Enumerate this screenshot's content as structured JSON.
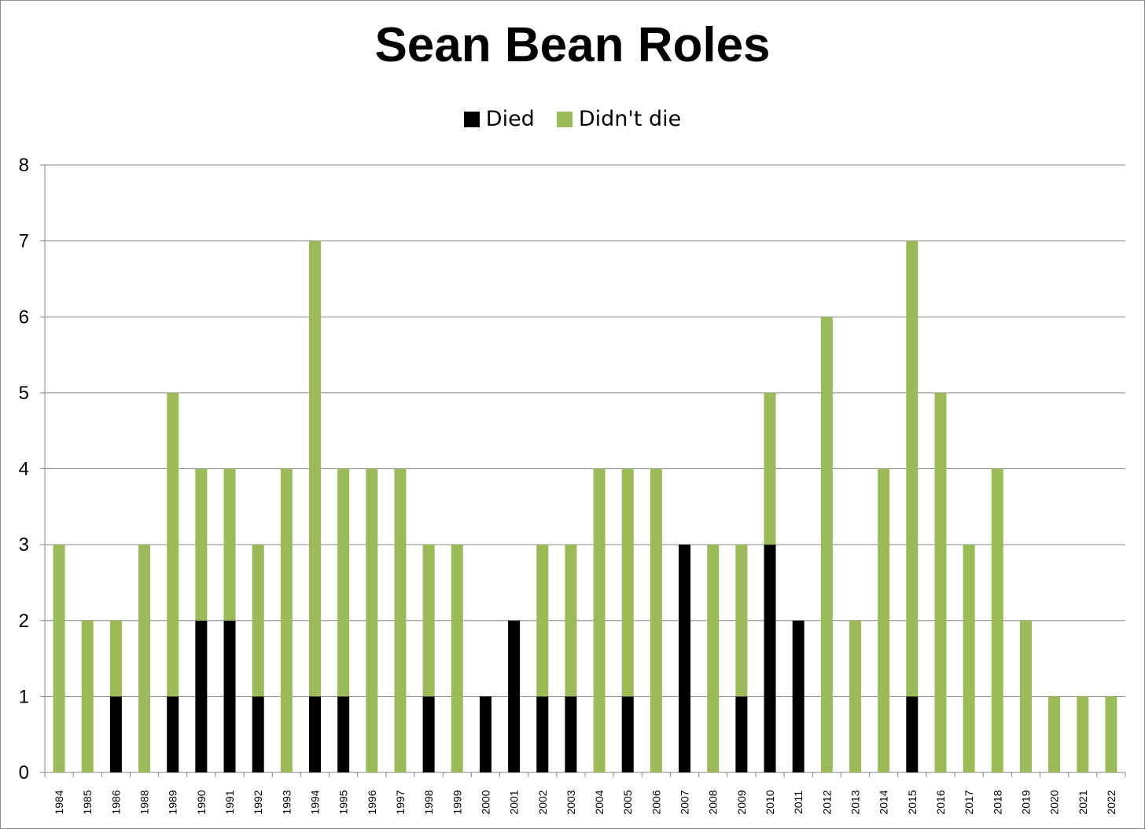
{
  "chart_data": {
    "type": "bar",
    "stacked": true,
    "title": "Sean Bean Roles",
    "xlabel": "",
    "ylabel": "",
    "ylim": [
      0,
      8
    ],
    "yticks": [
      "0",
      "1",
      "2",
      "3",
      "4",
      "5",
      "6",
      "7",
      "8"
    ],
    "grid": true,
    "legend_position": "top",
    "categories": [
      "1984",
      "1985",
      "1986",
      "1988",
      "1989",
      "1990",
      "1991",
      "1992",
      "1993",
      "1994",
      "1995",
      "1996",
      "1997",
      "1998",
      "1999",
      "2000",
      "2001",
      "2002",
      "2003",
      "2004",
      "2005",
      "2006",
      "2007",
      "2008",
      "2009",
      "2010",
      "2011",
      "2012",
      "2013",
      "2014",
      "2015",
      "2016",
      "2017",
      "2018",
      "2019",
      "2020",
      "2021",
      "2022"
    ],
    "series": [
      {
        "name": "Died",
        "color": "#000000",
        "values": [
          0,
          0,
          1,
          0,
          1,
          2,
          2,
          1,
          0,
          1,
          1,
          0,
          0,
          1,
          0,
          1,
          2,
          1,
          1,
          0,
          1,
          0,
          3,
          0,
          1,
          3,
          2,
          0,
          0,
          0,
          1,
          0,
          0,
          0,
          0,
          0,
          0,
          0
        ]
      },
      {
        "name": "Didn't die",
        "color": "#9bbb59",
        "values": [
          3,
          2,
          1,
          3,
          4,
          2,
          2,
          2,
          4,
          6,
          3,
          4,
          4,
          2,
          3,
          0,
          0,
          2,
          2,
          4,
          3,
          4,
          0,
          3,
          2,
          2,
          0,
          6,
          2,
          4,
          6,
          5,
          3,
          4,
          2,
          1,
          1,
          1
        ]
      }
    ]
  },
  "colors": {
    "gridline": "#868686",
    "axis": "#868686",
    "frame": "#8c8c8c"
  }
}
